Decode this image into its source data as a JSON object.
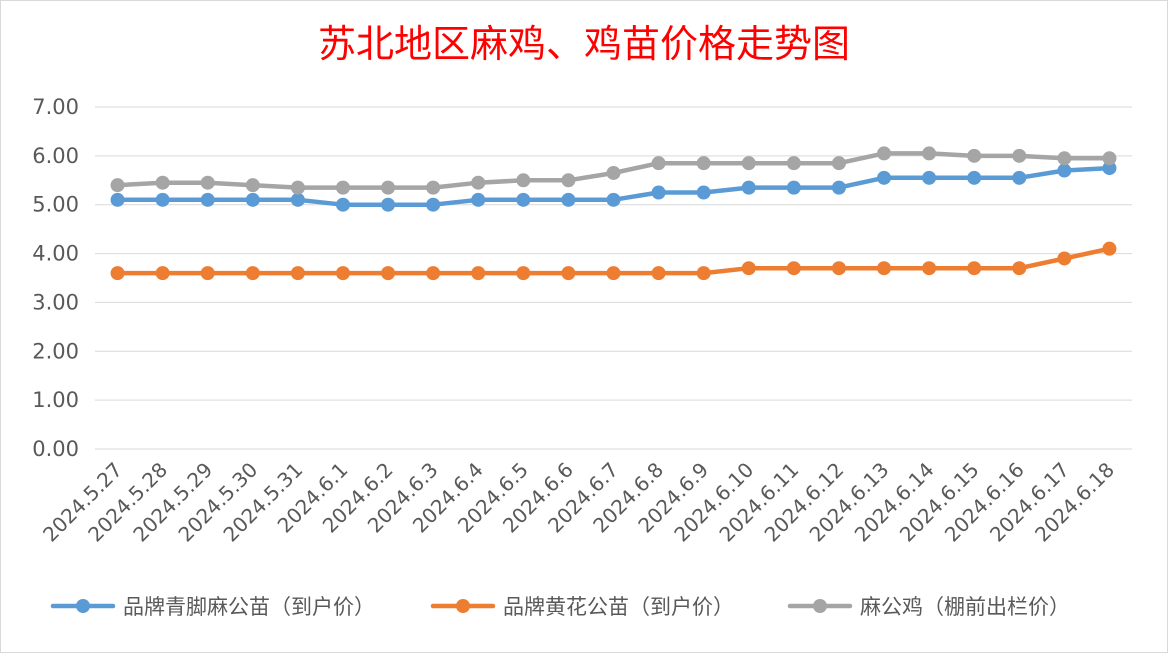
{
  "chart_data": {
    "type": "line",
    "title": "苏北地区麻鸡、鸡苗价格走势图",
    "xlabel": "",
    "ylabel": "",
    "ylim": [
      0,
      7
    ],
    "y_ticks": [
      "0.00",
      "1.00",
      "2.00",
      "3.00",
      "4.00",
      "5.00",
      "6.00",
      "7.00"
    ],
    "grid": true,
    "legend_position": "bottom",
    "categories": [
      "2024.5.27",
      "2024.5.28",
      "2024.5.29",
      "2024.5.30",
      "2024.5.31",
      "2024.6.1",
      "2024.6.2",
      "2024.6.3",
      "2024.6.4",
      "2024.6.5",
      "2024.6.6",
      "2024.6.7",
      "2024.6.8",
      "2024.6.9",
      "2024.6.10",
      "2024.6.11",
      "2024.6.12",
      "2024.6.13",
      "2024.6.14",
      "2024.6.15",
      "2024.6.16",
      "2024.6.17",
      "2024.6.18"
    ],
    "series": [
      {
        "name": "品牌青脚麻公苗（到户价）",
        "color": "#5b9bd5",
        "values": [
          5.1,
          5.1,
          5.1,
          5.1,
          5.1,
          5.0,
          5.0,
          5.0,
          5.1,
          5.1,
          5.1,
          5.1,
          5.25,
          5.25,
          5.35,
          5.35,
          5.35,
          5.55,
          5.55,
          5.55,
          5.55,
          5.7,
          5.75
        ]
      },
      {
        "name": "品牌黄花公苗（到户价）",
        "color": "#ed7d31",
        "values": [
          3.6,
          3.6,
          3.6,
          3.6,
          3.6,
          3.6,
          3.6,
          3.6,
          3.6,
          3.6,
          3.6,
          3.6,
          3.6,
          3.6,
          3.7,
          3.7,
          3.7,
          3.7,
          3.7,
          3.7,
          3.7,
          3.9,
          4.1
        ]
      },
      {
        "name": "麻公鸡（棚前出栏价）",
        "color": "#a5a5a5",
        "values": [
          5.4,
          5.45,
          5.45,
          5.4,
          5.35,
          5.35,
          5.35,
          5.35,
          5.45,
          5.5,
          5.5,
          5.65,
          5.85,
          5.85,
          5.85,
          5.85,
          5.85,
          6.05,
          6.05,
          6.0,
          6.0,
          5.95,
          5.95
        ]
      }
    ]
  }
}
